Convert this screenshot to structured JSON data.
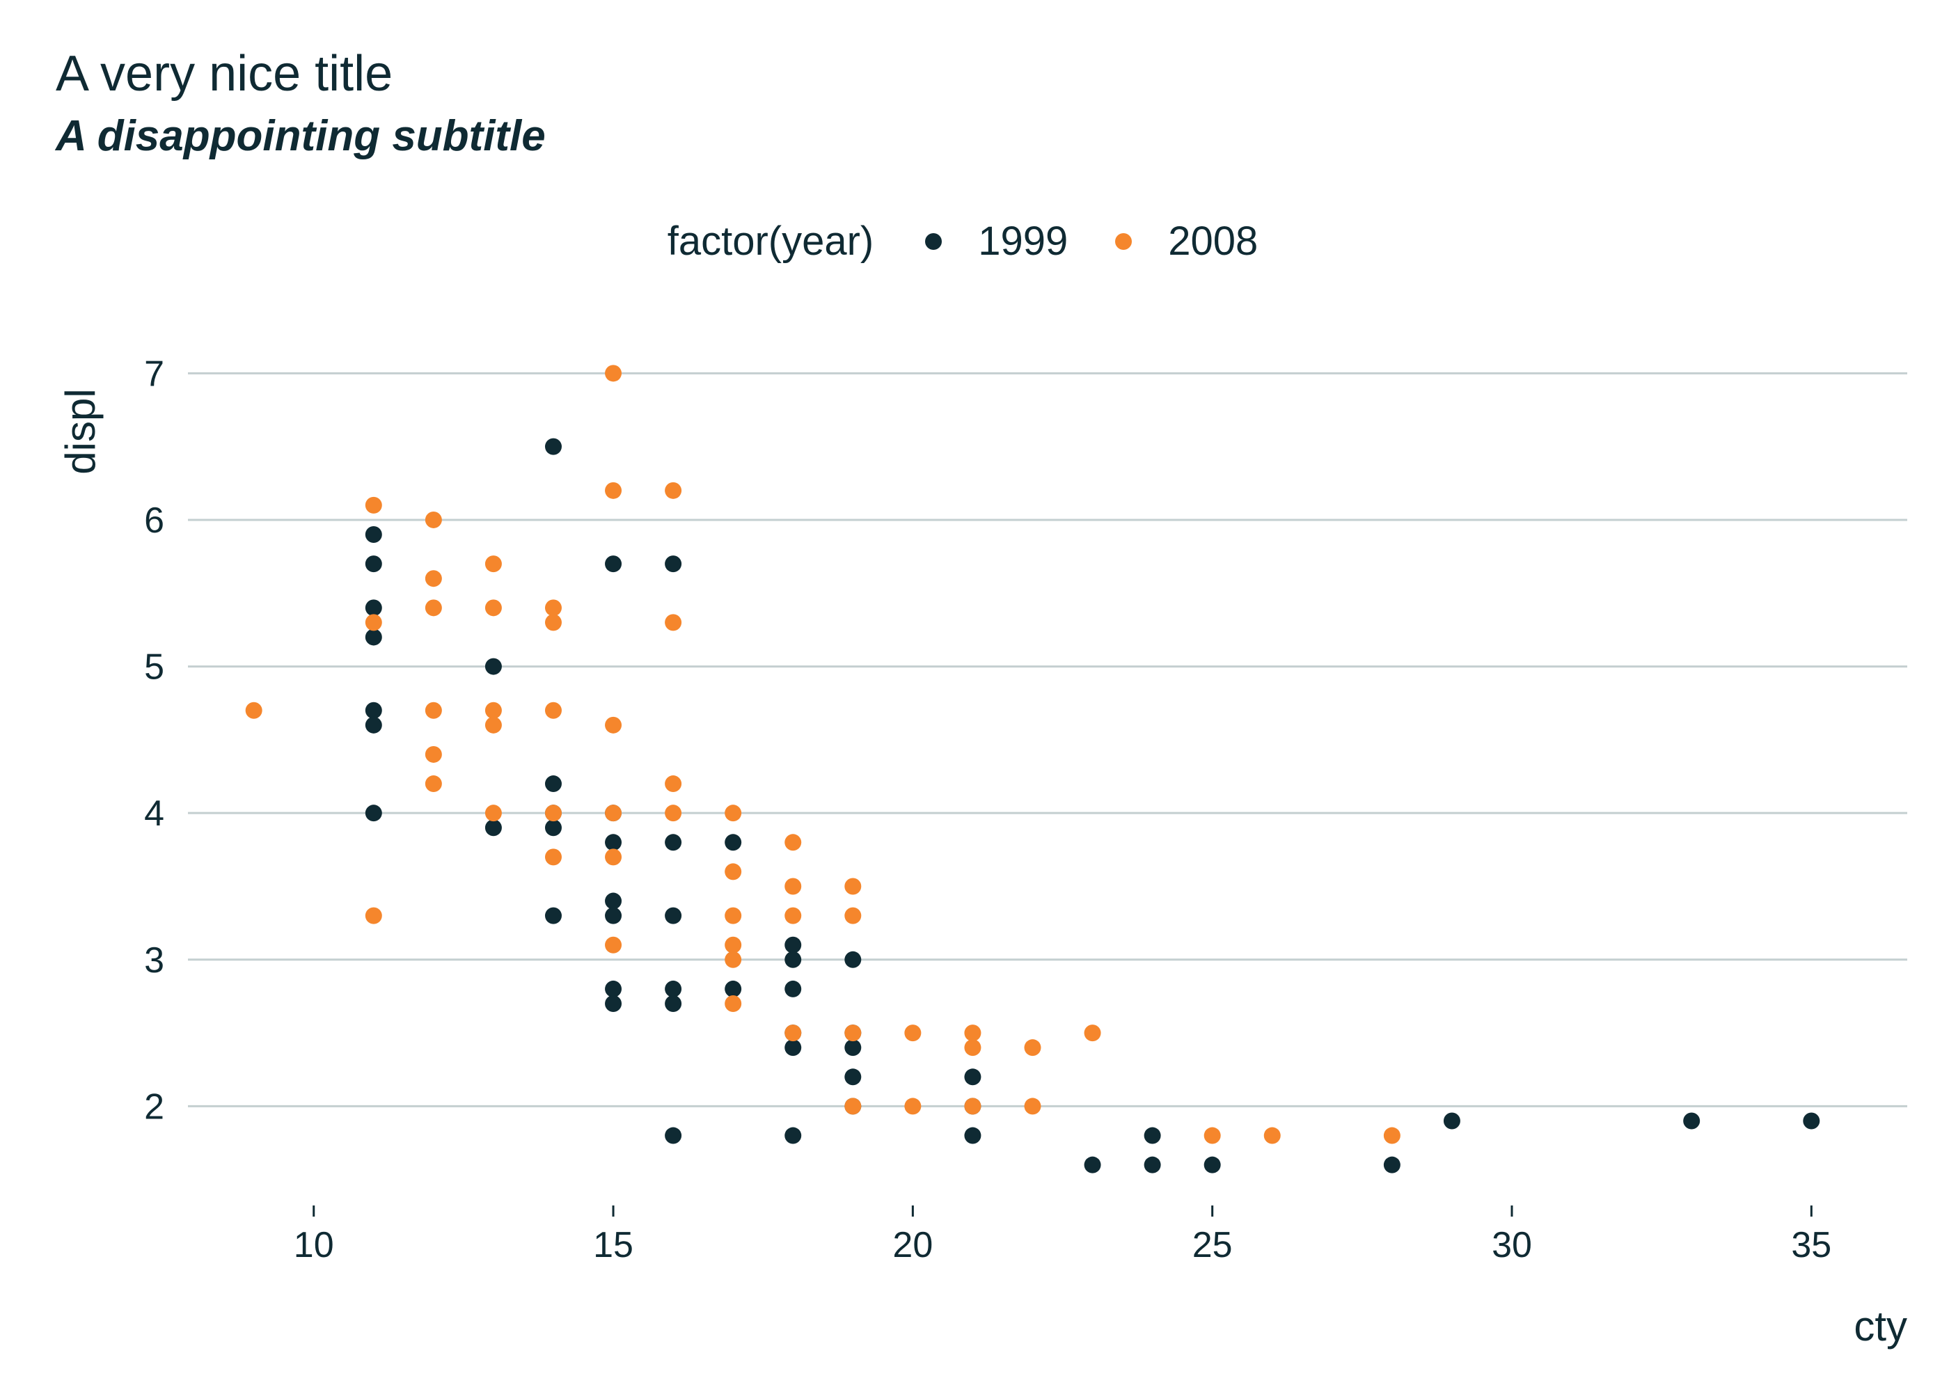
{
  "chart_data": {
    "type": "scatter",
    "title": "A very nice title",
    "subtitle": "A disappointing subtitle",
    "xlabel": "cty",
    "ylabel": "displ",
    "xlim": [
      7.9,
      36.6
    ],
    "ylim": [
      1.38,
      7.22
    ],
    "x_ticks": [
      10,
      15,
      20,
      25,
      30,
      35
    ],
    "y_ticks": [
      2,
      3,
      4,
      5,
      6,
      7
    ],
    "grid": "horizontal major",
    "legend": {
      "title": "factor(year)",
      "position": "top",
      "entries": [
        {
          "label": "1999",
          "color": "#0f2a33"
        },
        {
          "label": "2008",
          "color": "#f5862c"
        }
      ]
    },
    "series": [
      {
        "name": "1999",
        "color": "#0f2a33",
        "points": [
          [
            11,
            5.9
          ],
          [
            11,
            5.7
          ],
          [
            11,
            5.4
          ],
          [
            11,
            5.2
          ],
          [
            11,
            4.7
          ],
          [
            11,
            4.6
          ],
          [
            11,
            4.0
          ],
          [
            13,
            5.0
          ],
          [
            13,
            3.9
          ],
          [
            14,
            6.5
          ],
          [
            14,
            4.2
          ],
          [
            14,
            4.0
          ],
          [
            14,
            3.9
          ],
          [
            14,
            3.3
          ],
          [
            15,
            5.7
          ],
          [
            15,
            4.0
          ],
          [
            15,
            3.8
          ],
          [
            15,
            3.4
          ],
          [
            15,
            3.3
          ],
          [
            15,
            2.8
          ],
          [
            15,
            2.7
          ],
          [
            16,
            5.7
          ],
          [
            16,
            3.8
          ],
          [
            16,
            3.3
          ],
          [
            16,
            2.8
          ],
          [
            16,
            2.7
          ],
          [
            16,
            1.8
          ],
          [
            17,
            3.8
          ],
          [
            17,
            2.8
          ],
          [
            18,
            3.1
          ],
          [
            18,
            3.0
          ],
          [
            18,
            2.8
          ],
          [
            18,
            2.5
          ],
          [
            18,
            2.4
          ],
          [
            18,
            1.8
          ],
          [
            19,
            3.0
          ],
          [
            19,
            2.5
          ],
          [
            19,
            2.4
          ],
          [
            19,
            2.2
          ],
          [
            19,
            2.0
          ],
          [
            21,
            2.2
          ],
          [
            21,
            2.0
          ],
          [
            21,
            1.8
          ],
          [
            23,
            1.6
          ],
          [
            24,
            1.8
          ],
          [
            24,
            1.6
          ],
          [
            25,
            1.6
          ],
          [
            28,
            1.6
          ],
          [
            29,
            1.9
          ],
          [
            33,
            1.9
          ],
          [
            35,
            1.9
          ]
        ]
      },
      {
        "name": "2008",
        "color": "#f5862c",
        "points": [
          [
            9,
            4.7
          ],
          [
            11,
            6.1
          ],
          [
            11,
            5.3
          ],
          [
            11,
            3.3
          ],
          [
            12,
            6.0
          ],
          [
            12,
            5.6
          ],
          [
            12,
            5.4
          ],
          [
            12,
            4.7
          ],
          [
            12,
            4.4
          ],
          [
            12,
            4.2
          ],
          [
            13,
            5.7
          ],
          [
            13,
            5.4
          ],
          [
            13,
            4.7
          ],
          [
            13,
            4.6
          ],
          [
            13,
            4.0
          ],
          [
            14,
            5.4
          ],
          [
            14,
            5.3
          ],
          [
            14,
            4.7
          ],
          [
            14,
            4.0
          ],
          [
            14,
            3.7
          ],
          [
            15,
            7.0
          ],
          [
            15,
            6.2
          ],
          [
            15,
            4.6
          ],
          [
            15,
            4.0
          ],
          [
            15,
            3.7
          ],
          [
            15,
            3.1
          ],
          [
            16,
            6.2
          ],
          [
            16,
            5.3
          ],
          [
            16,
            4.2
          ],
          [
            16,
            4.0
          ],
          [
            17,
            4.0
          ],
          [
            17,
            3.6
          ],
          [
            17,
            3.3
          ],
          [
            17,
            3.1
          ],
          [
            17,
            3.0
          ],
          [
            17,
            2.7
          ],
          [
            18,
            3.8
          ],
          [
            18,
            3.5
          ],
          [
            18,
            3.3
          ],
          [
            18,
            2.5
          ],
          [
            19,
            3.5
          ],
          [
            19,
            3.3
          ],
          [
            19,
            2.5
          ],
          [
            19,
            2.0
          ],
          [
            20,
            2.5
          ],
          [
            20,
            2.0
          ],
          [
            21,
            2.5
          ],
          [
            21,
            2.4
          ],
          [
            21,
            2.0
          ],
          [
            22,
            2.4
          ],
          [
            22,
            2.0
          ],
          [
            23,
            2.5
          ],
          [
            25,
            1.8
          ],
          [
            26,
            1.8
          ],
          [
            28,
            1.8
          ]
        ]
      }
    ]
  }
}
